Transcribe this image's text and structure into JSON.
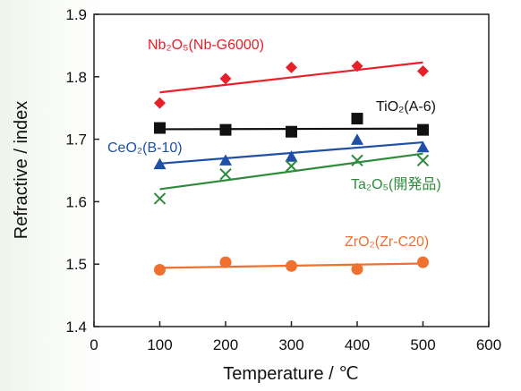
{
  "chart_data": {
    "type": "scatter",
    "title": "",
    "xlabel": "Temperature / ℃",
    "ylabel": "Refractive / index",
    "xlim": [
      0,
      600
    ],
    "ylim": [
      1.4,
      1.9
    ],
    "xticks": [
      "0",
      "100",
      "200",
      "300",
      "400",
      "500",
      "600"
    ],
    "yticks": [
      "1.4",
      "1.5",
      "1.6",
      "1.7",
      "1.8",
      "1.9"
    ],
    "grid": false,
    "legend": "labels placed next to each series",
    "series": [
      {
        "name": "Nb₂O₅(Nb-G6000)",
        "marker": "diamond",
        "color": "#e8202a",
        "x": [
          100,
          200,
          300,
          400,
          500
        ],
        "values": [
          1.758,
          1.797,
          1.815,
          1.817,
          1.809
        ],
        "trend": [
          1.775,
          1.823
        ]
      },
      {
        "name": "TiO₂(A-6)",
        "marker": "square",
        "color": "#111111",
        "x": [
          100,
          200,
          300,
          400,
          500
        ],
        "values": [
          1.718,
          1.715,
          1.712,
          1.733,
          1.715
        ],
        "trend": [
          1.716,
          1.717
        ]
      },
      {
        "name": "CeO₂(B-10)",
        "marker": "triangle",
        "color": "#1f4fa6",
        "x": [
          100,
          200,
          300,
          400,
          500
        ],
        "values": [
          1.66,
          1.666,
          1.672,
          1.699,
          1.687
        ],
        "trend": [
          1.661,
          1.695
        ]
      },
      {
        "name": "Ta₂O₅(開発品)",
        "marker": "x",
        "color": "#2e8b3c",
        "x": [
          100,
          200,
          300,
          400,
          500
        ],
        "values": [
          1.605,
          1.644,
          1.657,
          1.666,
          1.666
        ],
        "trend": [
          1.62,
          1.677
        ]
      },
      {
        "name": "ZrO₂(Zr-C20)",
        "marker": "circle",
        "color": "#f07030",
        "x": [
          100,
          200,
          300,
          400,
          500
        ],
        "values": [
          1.491,
          1.503,
          1.497,
          1.492,
          1.503
        ],
        "trend": [
          1.494,
          1.501
        ]
      }
    ]
  }
}
